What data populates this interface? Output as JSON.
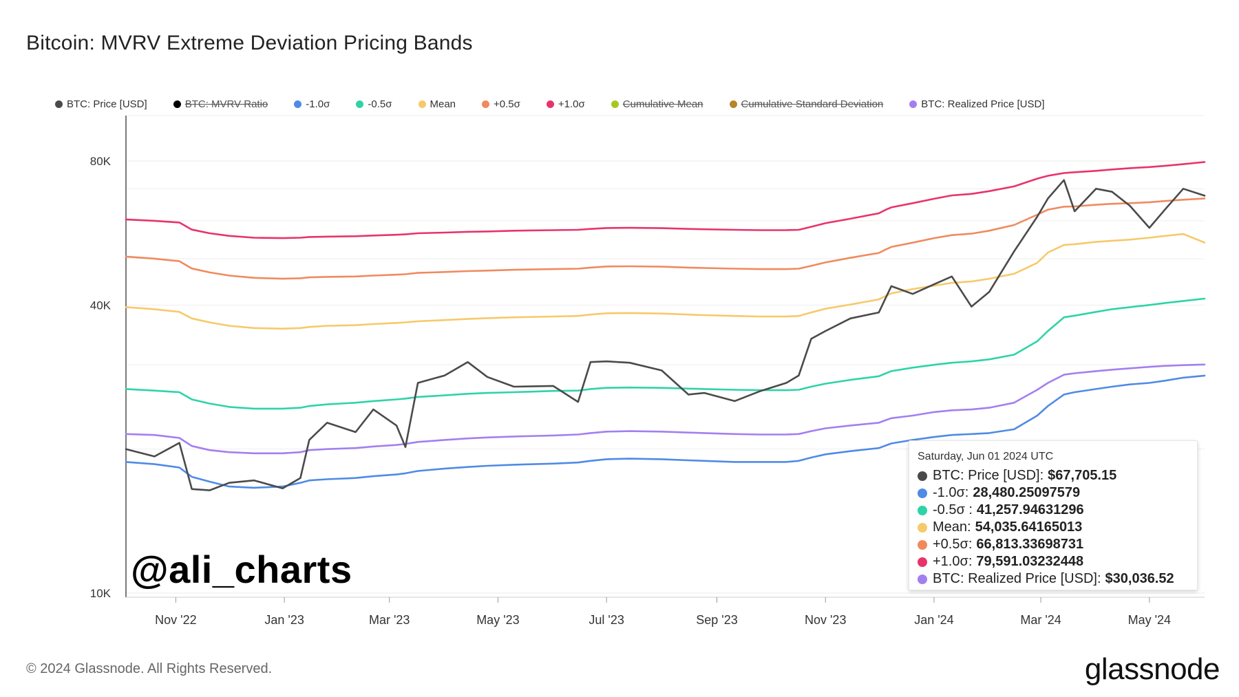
{
  "title": "Bitcoin: MVRV Extreme Deviation Pricing Bands",
  "legend": [
    {
      "label": "BTC: Price [USD]",
      "color": "#4a4a4a",
      "disabled": false
    },
    {
      "label": "BTC: MVRV Ratio",
      "color": "#000000",
      "disabled": true
    },
    {
      "label": "-1.0σ",
      "color": "#4f8ae6",
      "disabled": false
    },
    {
      "label": "-0.5σ",
      "color": "#2ed3a8",
      "disabled": false
    },
    {
      "label": "Mean",
      "color": "#f6c96a",
      "disabled": false
    },
    {
      "label": "+0.5σ",
      "color": "#f08a5d",
      "disabled": false
    },
    {
      "label": "+1.0σ",
      "color": "#e8336a",
      "disabled": false
    },
    {
      "label": "Cumulative Mean",
      "color": "#a7c820",
      "disabled": true
    },
    {
      "label": "Cumulative Standard Deviation",
      "color": "#b8842a",
      "disabled": true
    },
    {
      "label": "BTC: Realized Price [USD]",
      "color": "#a27ff0",
      "disabled": false
    }
  ],
  "watermark": "@ali_charts",
  "tooltip": {
    "date": "Saturday, Jun 01 2024 UTC",
    "rows": [
      {
        "label": "BTC: Price [USD]:",
        "value": "$67,705.15",
        "color": "#4a4a4a"
      },
      {
        "label": "-1.0σ:",
        "value": "28,480.25097579",
        "color": "#4f8ae6"
      },
      {
        "label": "-0.5σ :",
        "value": "41,257.94631296",
        "color": "#2ed3a8"
      },
      {
        "label": "Mean:",
        "value": "54,035.64165013",
        "color": "#f6c96a"
      },
      {
        "label": "+0.5σ:",
        "value": "66,813.33698731",
        "color": "#f08a5d"
      },
      {
        "label": "+1.0σ:",
        "value": "79,591.03232448",
        "color": "#e8336a"
      },
      {
        "label": "BTC: Realized Price [USD]:",
        "value": "$30,036.52",
        "color": "#a27ff0"
      }
    ]
  },
  "footer": "© 2024 Glassnode. All Rights Reserved.",
  "brand": "glassnode",
  "chart_data": {
    "type": "line",
    "title": "Bitcoin: MVRV Extreme Deviation Pricing Bands",
    "y_scale": "log",
    "ylim": [
      10000,
      100000
    ],
    "y_ticks": [
      {
        "value": 10000,
        "label": "10K"
      },
      {
        "value": 40000,
        "label": "40K"
      },
      {
        "value": 80000,
        "label": "80K"
      }
    ],
    "x_range": [
      "2022-10-04",
      "2024-06-01"
    ],
    "x_ticks": [
      {
        "date": "2022-11-01",
        "label": "Nov '22"
      },
      {
        "date": "2023-01-01",
        "label": "Jan '23"
      },
      {
        "date": "2023-03-01",
        "label": "Mar '23"
      },
      {
        "date": "2023-05-01",
        "label": "May '23"
      },
      {
        "date": "2023-07-01",
        "label": "Jul '23"
      },
      {
        "date": "2023-09-01",
        "label": "Sep '23"
      },
      {
        "date": "2023-11-01",
        "label": "Nov '23"
      },
      {
        "date": "2024-01-01",
        "label": "Jan '24"
      },
      {
        "date": "2024-03-01",
        "label": "Mar '24"
      },
      {
        "date": "2024-05-01",
        "label": "May '24"
      }
    ],
    "x": [
      "2022-10-04",
      "2022-10-20",
      "2022-11-03",
      "2022-11-10",
      "2022-11-20",
      "2022-12-01",
      "2022-12-15",
      "2022-12-31",
      "2023-01-10",
      "2023-01-15",
      "2023-01-25",
      "2023-02-10",
      "2023-02-20",
      "2023-03-05",
      "2023-03-10",
      "2023-03-17",
      "2023-04-01",
      "2023-04-14",
      "2023-04-25",
      "2023-05-10",
      "2023-06-01",
      "2023-06-15",
      "2023-06-22",
      "2023-07-01",
      "2023-07-14",
      "2023-08-01",
      "2023-08-16",
      "2023-08-25",
      "2023-09-11",
      "2023-09-25",
      "2023-10-10",
      "2023-10-17",
      "2023-10-24",
      "2023-11-01",
      "2023-11-15",
      "2023-12-01",
      "2023-12-05",
      "2023-12-08",
      "2023-12-20",
      "2024-01-01",
      "2024-01-11",
      "2024-01-22",
      "2024-02-01",
      "2024-02-15",
      "2024-02-28",
      "2024-03-05",
      "2024-03-14",
      "2024-03-20",
      "2024-04-01",
      "2024-04-10",
      "2024-04-20",
      "2024-05-01",
      "2024-05-10",
      "2024-05-20",
      "2024-06-01"
    ],
    "series": [
      {
        "name": "BTC: Price [USD]",
        "color": "#4a4a4a",
        "width": 2.6,
        "values": [
          20000,
          19300,
          20600,
          16500,
          16400,
          17000,
          17200,
          16550,
          17400,
          20900,
          22700,
          21700,
          24200,
          22400,
          20200,
          27500,
          28500,
          30400,
          28300,
          27000,
          27100,
          25100,
          30400,
          30500,
          30300,
          29200,
          26000,
          26200,
          25200,
          26400,
          27500,
          28500,
          34000,
          35300,
          37500,
          38600,
          41500,
          43800,
          42200,
          44200,
          45900,
          39700,
          42600,
          51800,
          61200,
          66800,
          73000,
          62800,
          70000,
          69000,
          64500,
          58000,
          63500,
          70000,
          67705
        ]
      },
      {
        "name": "-1.0σ",
        "color": "#4f8ae6",
        "width": 2.6,
        "values": [
          18800,
          18600,
          18300,
          17500,
          17100,
          16700,
          16600,
          16700,
          17000,
          17200,
          17300,
          17400,
          17550,
          17700,
          17800,
          18000,
          18200,
          18350,
          18450,
          18550,
          18650,
          18750,
          18900,
          19050,
          19100,
          19050,
          18950,
          18900,
          18800,
          18800,
          18800,
          18900,
          19200,
          19500,
          19800,
          20100,
          20350,
          20550,
          20900,
          21200,
          21400,
          21500,
          21600,
          22000,
          23500,
          24600,
          26000,
          26300,
          26700,
          27000,
          27300,
          27500,
          27800,
          28200,
          28480
        ]
      },
      {
        "name": "-0.5σ",
        "color": "#2ed3a8",
        "width": 2.6,
        "values": [
          26700,
          26500,
          26300,
          25400,
          24900,
          24500,
          24300,
          24300,
          24400,
          24600,
          24800,
          25000,
          25200,
          25400,
          25500,
          25700,
          25900,
          26100,
          26200,
          26300,
          26450,
          26500,
          26700,
          26850,
          26900,
          26850,
          26750,
          26700,
          26600,
          26550,
          26550,
          26600,
          27000,
          27400,
          27900,
          28400,
          28800,
          29100,
          29600,
          30000,
          30300,
          30500,
          30800,
          31500,
          33600,
          35300,
          37700,
          38000,
          38700,
          39200,
          39600,
          40000,
          40400,
          40800,
          41258
        ]
      },
      {
        "name": "Mean",
        "color": "#f6c96a",
        "width": 2.6,
        "values": [
          39600,
          39200,
          38700,
          37500,
          36800,
          36200,
          35800,
          35700,
          35800,
          36000,
          36200,
          36300,
          36500,
          36700,
          36800,
          37000,
          37200,
          37400,
          37550,
          37700,
          37850,
          37950,
          38200,
          38450,
          38500,
          38400,
          38200,
          38100,
          37950,
          37850,
          37850,
          37950,
          38600,
          39300,
          40100,
          41100,
          41800,
          42300,
          43200,
          43900,
          44500,
          44800,
          45400,
          46500,
          49000,
          51500,
          53400,
          53600,
          54200,
          54500,
          54800,
          55300,
          55800,
          56300,
          54036
        ]
      },
      {
        "name": "+0.5σ",
        "color": "#f08a5d",
        "width": 2.6,
        "values": [
          50500,
          50000,
          49400,
          47700,
          46800,
          46100,
          45600,
          45400,
          45500,
          45700,
          45800,
          45900,
          46100,
          46300,
          46400,
          46700,
          46900,
          47100,
          47200,
          47400,
          47550,
          47650,
          47900,
          48150,
          48200,
          48100,
          47900,
          47800,
          47650,
          47550,
          47550,
          47650,
          48300,
          49100,
          50200,
          51400,
          52300,
          52900,
          54000,
          55200,
          56000,
          56400,
          57200,
          58800,
          61800,
          63300,
          64200,
          64300,
          64800,
          65100,
          65300,
          65600,
          66000,
          66400,
          66813
        ]
      },
      {
        "name": "+1.0σ",
        "color": "#e8336a",
        "width": 2.6,
        "values": [
          60400,
          60000,
          59500,
          57500,
          56500,
          55800,
          55300,
          55200,
          55300,
          55500,
          55600,
          55700,
          55900,
          56100,
          56200,
          56500,
          56700,
          56900,
          57000,
          57200,
          57350,
          57450,
          57700,
          57950,
          58000,
          57900,
          57700,
          57600,
          57450,
          57350,
          57350,
          57450,
          58300,
          59300,
          60600,
          62200,
          63300,
          64000,
          65300,
          66700,
          67800,
          68300,
          69200,
          70800,
          73500,
          74500,
          75500,
          75800,
          76300,
          76800,
          77300,
          77700,
          78200,
          78800,
          79591
        ]
      },
      {
        "name": "BTC: Realized Price [USD]",
        "color": "#a27ff0",
        "width": 2.6,
        "values": [
          21500,
          21400,
          21100,
          20300,
          19900,
          19700,
          19600,
          19600,
          19700,
          19900,
          20000,
          20100,
          20250,
          20400,
          20500,
          20700,
          20900,
          21050,
          21150,
          21250,
          21350,
          21450,
          21600,
          21750,
          21800,
          21750,
          21650,
          21600,
          21500,
          21450,
          21450,
          21500,
          21800,
          22100,
          22400,
          22700,
          23000,
          23200,
          23500,
          23900,
          24100,
          24200,
          24400,
          25000,
          26600,
          27500,
          28600,
          28800,
          29100,
          29300,
          29500,
          29700,
          29850,
          29950,
          30037
        ]
      }
    ]
  }
}
